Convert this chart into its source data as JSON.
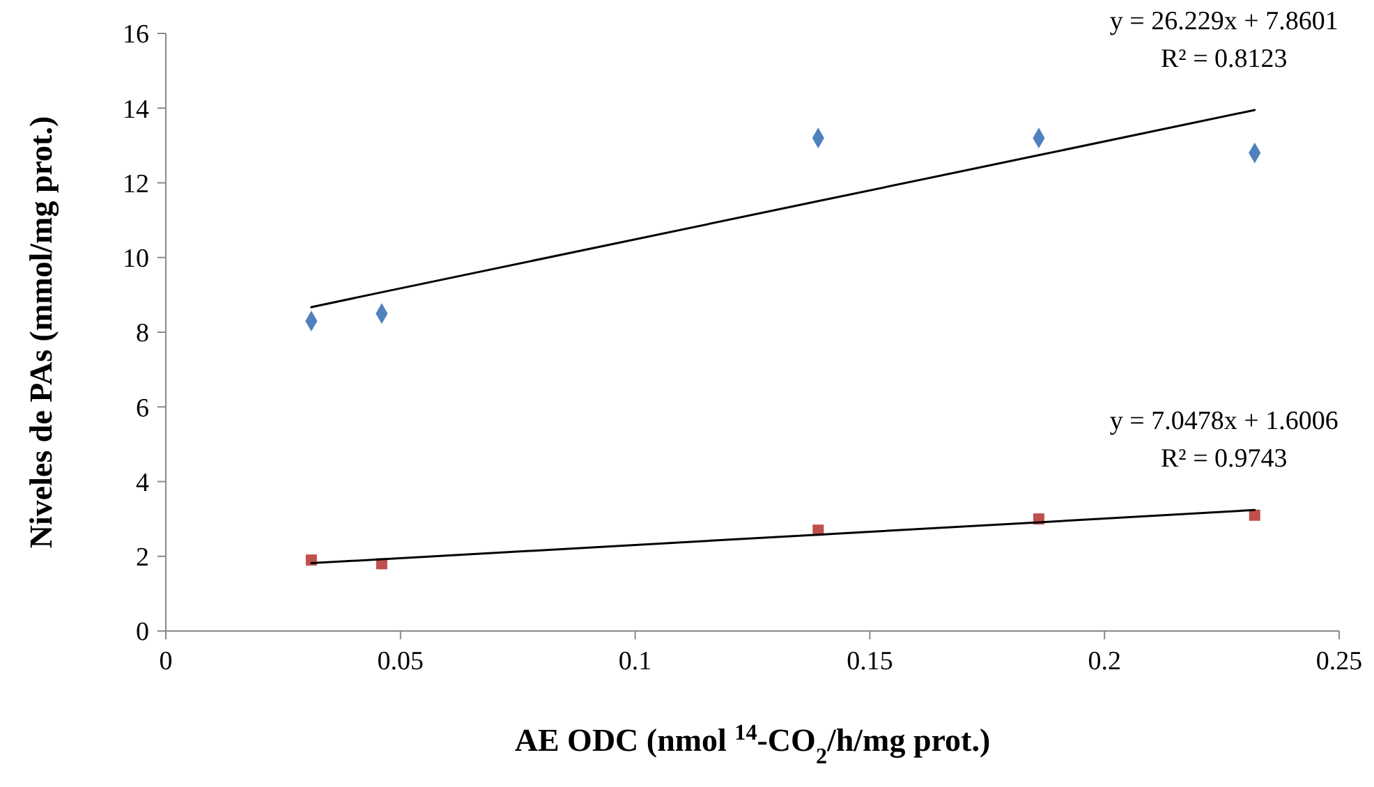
{
  "chart_data": {
    "type": "scatter",
    "xlabel": "AE ODC (nmol $^{14}$-CO$_{2}$/h/mg prot.)",
    "ylabel": "Niveles de PAs (mmol/mg prot.)",
    "x": [
      0.031,
      0.046,
      0.139,
      0.186,
      0.232
    ],
    "series": [
      {
        "marker": "diamond",
        "color": "#4f81bd",
        "values": [
          8.3,
          8.5,
          13.2,
          13.2,
          12.8
        ]
      },
      {
        "marker": "square",
        "color": "#c0504d",
        "values": [
          1.9,
          1.8,
          2.7,
          3.0,
          3.1
        ]
      },
      {
        "type": "line",
        "marker": "none",
        "color": "#000000",
        "values": [
          8.67,
          9.07,
          11.51,
          12.74,
          13.95
        ]
      },
      {
        "type": "line",
        "marker": "none",
        "color": "#000000",
        "values": [
          1.82,
          1.92,
          2.58,
          2.91,
          3.24
        ]
      }
    ],
    "annotations": [
      "y = 26.229x + 7.8601",
      "R² = 0.8123",
      "y = 7.0478x + 1.6006",
      "R² = 0.9743"
    ],
    "xlim": [
      0,
      0.25
    ],
    "xticks": [
      0,
      0.05,
      0.1,
      0.15,
      0.2,
      0.25
    ],
    "ylim": [
      0,
      16
    ],
    "yticks": [
      0,
      2,
      4,
      6,
      8,
      10,
      12,
      14,
      16
    ],
    "grid": false
  }
}
